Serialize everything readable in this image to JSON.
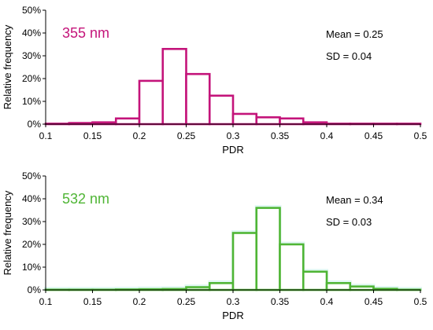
{
  "chart_data": [
    {
      "type": "bar",
      "label": "355 nm",
      "color": "#c4147a",
      "fill": "#ffffff",
      "stats": {
        "mean": "Mean = 0.25",
        "sd": "SD = 0.04"
      },
      "xlabel": "PDR",
      "ylabel": "Relative frequency",
      "xlim": [
        0.1,
        0.5
      ],
      "ylim": [
        0,
        50
      ],
      "x_ticks": [
        "0.1",
        "0.15",
        "0.2",
        "0.25",
        "0.3",
        "0.35",
        "0.4",
        "0.45",
        "0.5"
      ],
      "y_ticks": [
        "0%",
        "10%",
        "20%",
        "30%",
        "40%",
        "50%"
      ],
      "bin_edges": [
        0.1,
        0.125,
        0.15,
        0.175,
        0.2,
        0.225,
        0.25,
        0.275,
        0.3,
        0.325,
        0.35,
        0.375,
        0.4,
        0.425,
        0.45,
        0.475,
        0.5
      ],
      "values": [
        0.2,
        0.5,
        0.8,
        2.5,
        19,
        33,
        22,
        12.5,
        4.5,
        3,
        2.5,
        0.8,
        0.2,
        0.2,
        0.2,
        0.2
      ],
      "grid": false
    },
    {
      "type": "bar",
      "label": "532 nm",
      "color": "#4fb535",
      "fill": "#ffffff",
      "shade": "#dff7f2",
      "stats": {
        "mean": "Mean = 0.34",
        "sd": "SD = 0.03"
      },
      "xlabel": "PDR",
      "ylabel": "Relative frequency",
      "xlim": [
        0.1,
        0.5
      ],
      "ylim": [
        0,
        50
      ],
      "x_ticks": [
        "0.1",
        "0.15",
        "0.2",
        "0.25",
        "0.3",
        "0.35",
        "0.4",
        "0.45",
        "0.5"
      ],
      "y_ticks": [
        "0%",
        "10%",
        "20%",
        "30%",
        "40%",
        "50%"
      ],
      "bin_edges": [
        0.1,
        0.125,
        0.15,
        0.175,
        0.2,
        0.225,
        0.25,
        0.275,
        0.3,
        0.325,
        0.35,
        0.375,
        0.4,
        0.425,
        0.45,
        0.475,
        0.5
      ],
      "values": [
        0.1,
        0.1,
        0.1,
        0.2,
        0.3,
        0.4,
        1.2,
        3,
        25,
        36,
        20,
        8,
        3,
        1.5,
        0.5,
        0.1
      ],
      "grid": false
    }
  ]
}
